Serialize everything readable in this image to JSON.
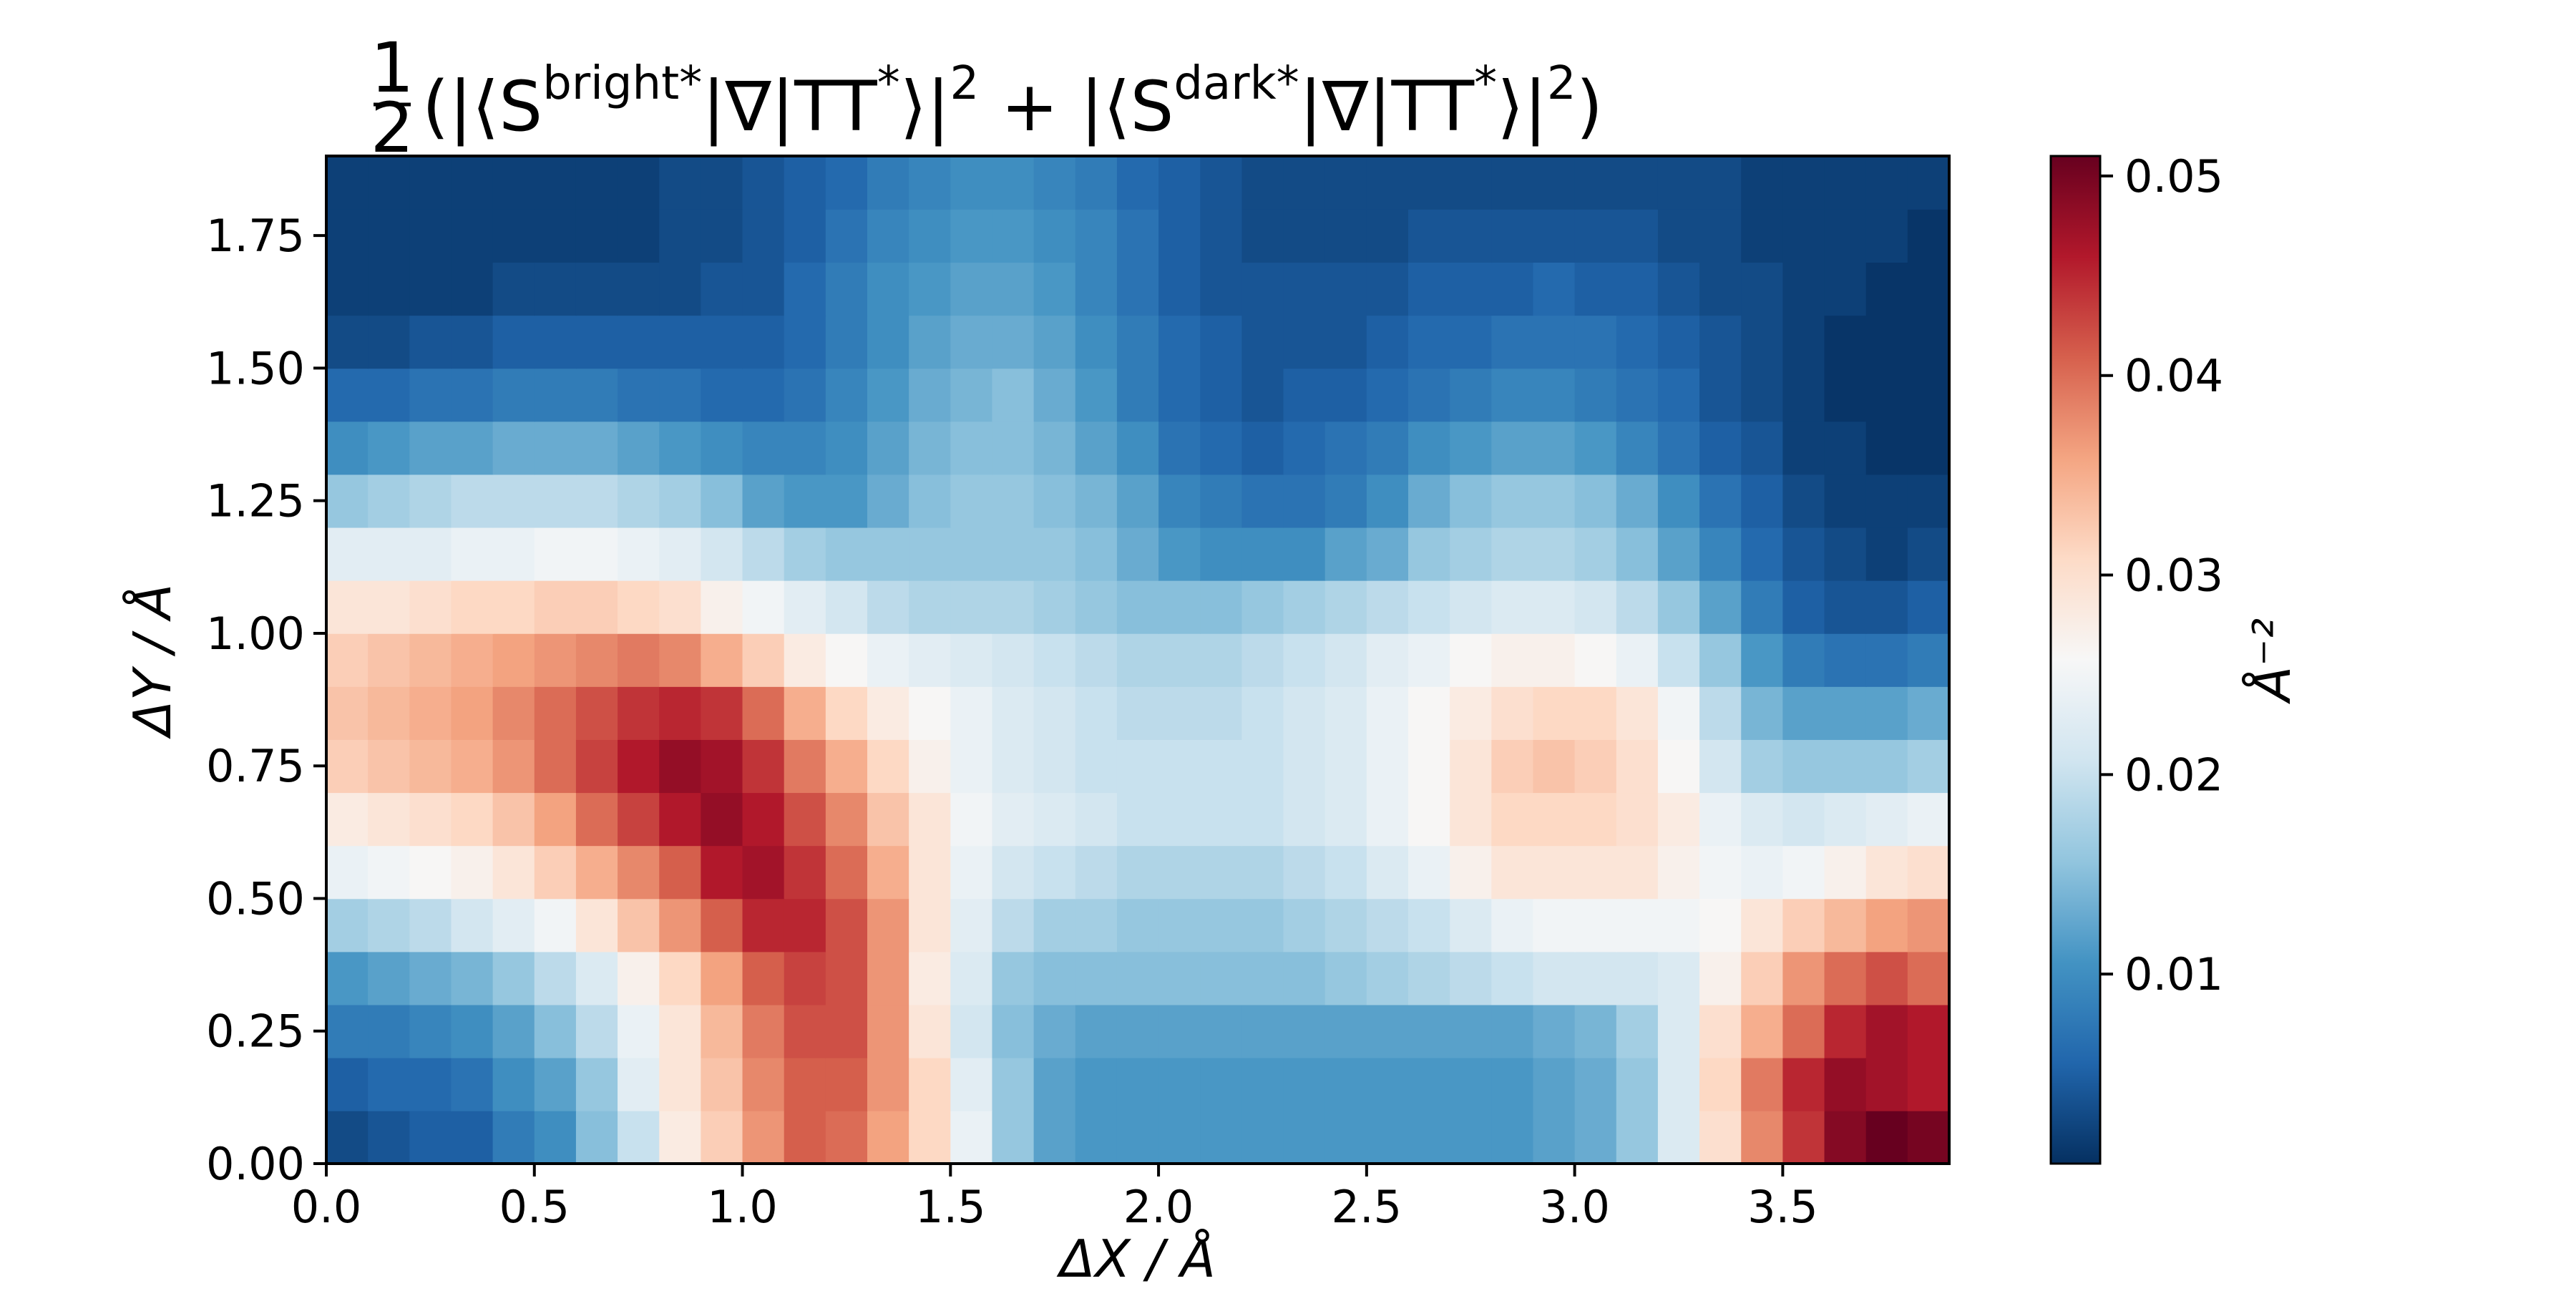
{
  "chart_data": {
    "type": "heatmap",
    "title": {
      "prefix_num": "1",
      "prefix_den": "2",
      "open": "(|⟨S",
      "sup1": "bright*",
      "mid1": "|∇|TT",
      "sup_star1": "*",
      "mid2": "⟩|",
      "sq1": "2",
      "plus": " + |⟨S",
      "sup2": "dark*",
      "mid3": "|∇|TT",
      "sup_star2": "*",
      "mid4": "⟩|",
      "sq2": "2",
      "close": ")"
    },
    "xlabel": "ΔX / Å",
    "ylabel": "ΔY / Å",
    "colorbar_label": "Å⁻²",
    "xlim": [
      0.0,
      3.9
    ],
    "ylim": [
      0.0,
      1.9
    ],
    "x_ticks": [
      "0.0",
      "0.5",
      "1.0",
      "1.5",
      "2.0",
      "2.5",
      "3.0",
      "3.5"
    ],
    "x_tick_values": [
      0.0,
      0.5,
      1.0,
      1.5,
      2.0,
      2.5,
      3.0,
      3.5
    ],
    "y_ticks": [
      "0.00",
      "0.25",
      "0.50",
      "0.75",
      "1.00",
      "1.25",
      "1.50",
      "1.75"
    ],
    "y_tick_values": [
      0.0,
      0.25,
      0.5,
      0.75,
      1.0,
      1.25,
      1.5,
      1.75
    ],
    "colorbar_ticks": [
      "0.01",
      "0.02",
      "0.03",
      "0.04",
      "0.05"
    ],
    "colorbar_tick_values": [
      0.01,
      0.02,
      0.03,
      0.04,
      0.05
    ],
    "vmin": 0.0005,
    "vmax": 0.051,
    "colormap": "RdBu_r",
    "grid": false,
    "x": [
      0.05,
      0.15,
      0.25,
      0.35,
      0.45,
      0.55,
      0.65,
      0.75,
      0.85,
      0.95,
      1.05,
      1.15,
      1.25,
      1.35,
      1.45,
      1.55,
      1.65,
      1.75,
      1.85,
      1.95,
      2.05,
      2.15,
      2.25,
      2.35,
      2.45,
      2.55,
      2.65,
      2.75,
      2.85,
      2.95,
      3.05,
      3.15,
      3.25,
      3.35,
      3.45,
      3.55,
      3.65,
      3.75,
      3.85
    ],
    "y": [
      0.05,
      0.15,
      0.25,
      0.35,
      0.45,
      0.55,
      0.65,
      0.75,
      0.85,
      0.95,
      1.05,
      1.15,
      1.25,
      1.35,
      1.45,
      1.55,
      1.65,
      1.75,
      1.85
    ],
    "z": [
      [
        0.003,
        0.004,
        0.005,
        0.005,
        0.008,
        0.01,
        0.015,
        0.02,
        0.028,
        0.032,
        0.037,
        0.041,
        0.04,
        0.036,
        0.031,
        0.024,
        0.016,
        0.012,
        0.011,
        0.011,
        0.011,
        0.011,
        0.011,
        0.011,
        0.011,
        0.011,
        0.011,
        0.011,
        0.011,
        0.012,
        0.013,
        0.016,
        0.022,
        0.03,
        0.038,
        0.044,
        0.049,
        0.051,
        0.05
      ],
      [
        0.005,
        0.006,
        0.006,
        0.007,
        0.01,
        0.012,
        0.016,
        0.023,
        0.029,
        0.033,
        0.038,
        0.041,
        0.041,
        0.037,
        0.031,
        0.023,
        0.016,
        0.012,
        0.011,
        0.011,
        0.011,
        0.011,
        0.011,
        0.011,
        0.011,
        0.011,
        0.011,
        0.011,
        0.011,
        0.012,
        0.013,
        0.016,
        0.022,
        0.031,
        0.039,
        0.045,
        0.048,
        0.047,
        0.046
      ],
      [
        0.008,
        0.008,
        0.009,
        0.01,
        0.012,
        0.015,
        0.019,
        0.024,
        0.029,
        0.034,
        0.039,
        0.042,
        0.042,
        0.037,
        0.029,
        0.021,
        0.015,
        0.013,
        0.012,
        0.012,
        0.012,
        0.012,
        0.012,
        0.012,
        0.012,
        0.012,
        0.012,
        0.012,
        0.012,
        0.013,
        0.014,
        0.017,
        0.022,
        0.03,
        0.035,
        0.04,
        0.045,
        0.047,
        0.046
      ],
      [
        0.011,
        0.012,
        0.013,
        0.014,
        0.016,
        0.019,
        0.022,
        0.027,
        0.031,
        0.036,
        0.041,
        0.043,
        0.042,
        0.037,
        0.028,
        0.022,
        0.016,
        0.015,
        0.015,
        0.015,
        0.015,
        0.015,
        0.015,
        0.015,
        0.016,
        0.017,
        0.018,
        0.019,
        0.02,
        0.021,
        0.021,
        0.021,
        0.022,
        0.027,
        0.032,
        0.037,
        0.04,
        0.042,
        0.04
      ],
      [
        0.017,
        0.018,
        0.019,
        0.021,
        0.023,
        0.025,
        0.029,
        0.033,
        0.037,
        0.041,
        0.045,
        0.045,
        0.042,
        0.037,
        0.029,
        0.023,
        0.019,
        0.017,
        0.017,
        0.016,
        0.016,
        0.016,
        0.016,
        0.017,
        0.018,
        0.019,
        0.02,
        0.022,
        0.024,
        0.025,
        0.025,
        0.025,
        0.025,
        0.026,
        0.029,
        0.032,
        0.034,
        0.036,
        0.037
      ],
      [
        0.024,
        0.025,
        0.026,
        0.027,
        0.029,
        0.032,
        0.035,
        0.038,
        0.041,
        0.046,
        0.047,
        0.044,
        0.04,
        0.035,
        0.029,
        0.024,
        0.021,
        0.02,
        0.019,
        0.018,
        0.018,
        0.018,
        0.018,
        0.019,
        0.02,
        0.022,
        0.024,
        0.027,
        0.029,
        0.029,
        0.029,
        0.029,
        0.027,
        0.025,
        0.024,
        0.025,
        0.027,
        0.029,
        0.03
      ],
      [
        0.028,
        0.029,
        0.03,
        0.031,
        0.033,
        0.036,
        0.04,
        0.043,
        0.046,
        0.048,
        0.046,
        0.042,
        0.038,
        0.033,
        0.029,
        0.025,
        0.023,
        0.022,
        0.021,
        0.02,
        0.02,
        0.02,
        0.02,
        0.021,
        0.022,
        0.024,
        0.026,
        0.029,
        0.031,
        0.031,
        0.031,
        0.03,
        0.028,
        0.024,
        0.022,
        0.021,
        0.022,
        0.023,
        0.024
      ],
      [
        0.032,
        0.033,
        0.034,
        0.035,
        0.037,
        0.04,
        0.043,
        0.046,
        0.048,
        0.047,
        0.044,
        0.039,
        0.035,
        0.031,
        0.027,
        0.024,
        0.022,
        0.021,
        0.02,
        0.02,
        0.02,
        0.02,
        0.02,
        0.021,
        0.022,
        0.024,
        0.026,
        0.029,
        0.032,
        0.033,
        0.032,
        0.03,
        0.026,
        0.021,
        0.017,
        0.016,
        0.016,
        0.016,
        0.017
      ],
      [
        0.033,
        0.034,
        0.035,
        0.036,
        0.038,
        0.04,
        0.042,
        0.044,
        0.045,
        0.044,
        0.04,
        0.035,
        0.031,
        0.028,
        0.026,
        0.024,
        0.022,
        0.021,
        0.02,
        0.019,
        0.019,
        0.019,
        0.02,
        0.021,
        0.022,
        0.024,
        0.026,
        0.028,
        0.03,
        0.031,
        0.031,
        0.029,
        0.025,
        0.019,
        0.014,
        0.012,
        0.012,
        0.012,
        0.013
      ],
      [
        0.032,
        0.033,
        0.034,
        0.035,
        0.036,
        0.037,
        0.038,
        0.039,
        0.038,
        0.035,
        0.032,
        0.028,
        0.026,
        0.024,
        0.023,
        0.022,
        0.021,
        0.02,
        0.019,
        0.018,
        0.018,
        0.018,
        0.019,
        0.02,
        0.021,
        0.023,
        0.024,
        0.026,
        0.027,
        0.027,
        0.026,
        0.024,
        0.02,
        0.016,
        0.011,
        0.008,
        0.007,
        0.007,
        0.008
      ],
      [
        0.029,
        0.029,
        0.03,
        0.031,
        0.031,
        0.032,
        0.032,
        0.031,
        0.03,
        0.027,
        0.025,
        0.023,
        0.021,
        0.019,
        0.018,
        0.018,
        0.018,
        0.017,
        0.016,
        0.015,
        0.015,
        0.015,
        0.016,
        0.017,
        0.018,
        0.019,
        0.02,
        0.021,
        0.022,
        0.022,
        0.021,
        0.019,
        0.016,
        0.012,
        0.008,
        0.005,
        0.004,
        0.004,
        0.005
      ],
      [
        0.023,
        0.023,
        0.023,
        0.024,
        0.024,
        0.025,
        0.025,
        0.024,
        0.023,
        0.021,
        0.019,
        0.017,
        0.016,
        0.016,
        0.016,
        0.016,
        0.016,
        0.016,
        0.015,
        0.013,
        0.011,
        0.01,
        0.01,
        0.01,
        0.012,
        0.013,
        0.016,
        0.017,
        0.018,
        0.018,
        0.017,
        0.015,
        0.012,
        0.009,
        0.006,
        0.004,
        0.003,
        0.002,
        0.003
      ],
      [
        0.016,
        0.017,
        0.018,
        0.019,
        0.019,
        0.019,
        0.019,
        0.018,
        0.017,
        0.015,
        0.012,
        0.011,
        0.011,
        0.013,
        0.015,
        0.016,
        0.016,
        0.015,
        0.014,
        0.012,
        0.009,
        0.008,
        0.007,
        0.007,
        0.008,
        0.01,
        0.013,
        0.015,
        0.016,
        0.016,
        0.015,
        0.013,
        0.01,
        0.007,
        0.005,
        0.003,
        0.002,
        0.002,
        0.002
      ],
      [
        0.01,
        0.011,
        0.012,
        0.012,
        0.013,
        0.013,
        0.013,
        0.012,
        0.011,
        0.01,
        0.009,
        0.009,
        0.01,
        0.012,
        0.014,
        0.015,
        0.015,
        0.014,
        0.012,
        0.01,
        0.007,
        0.006,
        0.005,
        0.006,
        0.007,
        0.008,
        0.01,
        0.011,
        0.012,
        0.012,
        0.011,
        0.009,
        0.007,
        0.005,
        0.004,
        0.002,
        0.002,
        0.001,
        0.001
      ],
      [
        0.006,
        0.006,
        0.007,
        0.007,
        0.008,
        0.008,
        0.008,
        0.007,
        0.007,
        0.006,
        0.006,
        0.007,
        0.009,
        0.011,
        0.013,
        0.014,
        0.015,
        0.013,
        0.011,
        0.008,
        0.006,
        0.005,
        0.004,
        0.005,
        0.005,
        0.006,
        0.007,
        0.008,
        0.009,
        0.009,
        0.008,
        0.007,
        0.006,
        0.004,
        0.003,
        0.002,
        0.001,
        0.001,
        0.001
      ],
      [
        0.003,
        0.003,
        0.004,
        0.004,
        0.005,
        0.005,
        0.005,
        0.005,
        0.005,
        0.005,
        0.005,
        0.006,
        0.008,
        0.01,
        0.012,
        0.013,
        0.013,
        0.012,
        0.01,
        0.008,
        0.006,
        0.005,
        0.004,
        0.004,
        0.004,
        0.005,
        0.006,
        0.006,
        0.007,
        0.007,
        0.007,
        0.006,
        0.005,
        0.004,
        0.003,
        0.002,
        0.001,
        0.001,
        0.001
      ],
      [
        0.002,
        0.002,
        0.002,
        0.002,
        0.003,
        0.003,
        0.003,
        0.003,
        0.003,
        0.004,
        0.004,
        0.006,
        0.008,
        0.01,
        0.011,
        0.012,
        0.012,
        0.011,
        0.009,
        0.007,
        0.005,
        0.004,
        0.004,
        0.004,
        0.004,
        0.004,
        0.005,
        0.005,
        0.005,
        0.006,
        0.005,
        0.005,
        0.004,
        0.003,
        0.003,
        0.002,
        0.002,
        0.001,
        0.001
      ],
      [
        0.002,
        0.002,
        0.002,
        0.002,
        0.002,
        0.002,
        0.002,
        0.002,
        0.003,
        0.003,
        0.004,
        0.005,
        0.007,
        0.009,
        0.01,
        0.011,
        0.011,
        0.01,
        0.009,
        0.007,
        0.005,
        0.004,
        0.003,
        0.003,
        0.003,
        0.003,
        0.004,
        0.004,
        0.004,
        0.004,
        0.004,
        0.004,
        0.003,
        0.003,
        0.002,
        0.002,
        0.002,
        0.002,
        0.001
      ],
      [
        0.002,
        0.002,
        0.002,
        0.002,
        0.002,
        0.002,
        0.002,
        0.002,
        0.003,
        0.003,
        0.004,
        0.005,
        0.006,
        0.008,
        0.009,
        0.01,
        0.01,
        0.009,
        0.008,
        0.006,
        0.005,
        0.004,
        0.003,
        0.003,
        0.003,
        0.003,
        0.003,
        0.003,
        0.003,
        0.003,
        0.003,
        0.003,
        0.003,
        0.003,
        0.002,
        0.002,
        0.002,
        0.002,
        0.002
      ]
    ]
  }
}
